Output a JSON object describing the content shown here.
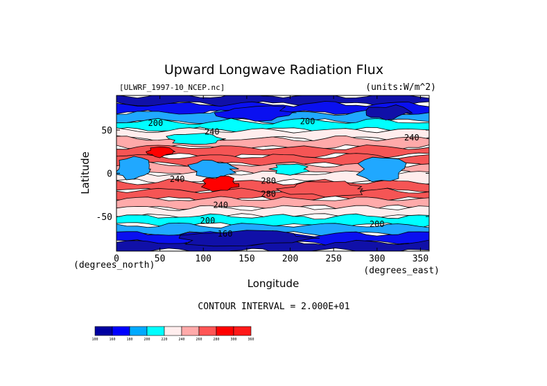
{
  "chart_data": {
    "type": "heatmap",
    "title": "Upward Longwave Radiation Flux",
    "dataset": "[ULWRF_1997-10_NCEP.nc]",
    "units_label": "(units:W/m^2)",
    "xlabel": "Longitude",
    "ylabel": "Latitude",
    "x_units": "(degrees_east)",
    "y_units": "(degrees_north)",
    "xlim": [
      0,
      360
    ],
    "ylim": [
      -90,
      90
    ],
    "x_ticks": [
      0,
      50,
      100,
      150,
      200,
      250,
      300,
      350
    ],
    "y_ticks": [
      -50,
      0,
      50
    ],
    "contour_interval_text": "CONTOUR INTERVAL = 2.000E+01",
    "colorbar": {
      "levels": [
        100,
        160,
        180,
        200,
        220,
        240,
        260,
        280,
        300,
        360
      ],
      "colors": [
        "#0000a0",
        "#0000ff",
        "#00aaff",
        "#00ffff",
        "#ffeded",
        "#ffaaaa",
        "#ff5555",
        "#ff0000",
        "#ff1a1a"
      ]
    },
    "band_colors": [
      "#1010a8",
      "#0a10f0",
      "#20a8ff",
      "#00ffff",
      "#ffeded",
      "#ffaaaa",
      "#f55555",
      "#ff0000"
    ],
    "zonal_profile": [
      {
        "lat": 90,
        "band": 0
      },
      {
        "lat": 80,
        "band": 1
      },
      {
        "lat": 70,
        "band": 2
      },
      {
        "lat": 60,
        "band": 3
      },
      {
        "lat": 50,
        "band": 4
      },
      {
        "lat": 40,
        "band": 5
      },
      {
        "lat": 30,
        "band": 6
      },
      {
        "lat": 20,
        "band": 6
      },
      {
        "lat": 10,
        "band": 5
      },
      {
        "lat": 0,
        "band": 4
      },
      {
        "lat": -10,
        "band": 6
      },
      {
        "lat": -20,
        "band": 6
      },
      {
        "lat": -30,
        "band": 5
      },
      {
        "lat": -40,
        "band": 4
      },
      {
        "lat": -50,
        "band": 3
      },
      {
        "lat": -60,
        "band": 2
      },
      {
        "lat": -70,
        "band": 1
      },
      {
        "lat": -80,
        "band": 0
      },
      {
        "lat": -90,
        "band": 0
      }
    ],
    "features": [
      {
        "lon": 110,
        "lat": 5,
        "band": 2,
        "w": 25,
        "h": 10
      },
      {
        "lon": 20,
        "lat": 5,
        "band": 2,
        "w": 20,
        "h": 12
      },
      {
        "lon": 305,
        "lat": 5,
        "band": 2,
        "w": 25,
        "h": 14
      },
      {
        "lon": 120,
        "lat": -12,
        "band": 7,
        "w": 20,
        "h": 8
      },
      {
        "lon": 50,
        "lat": 25,
        "band": 7,
        "w": 15,
        "h": 6
      },
      {
        "lon": 200,
        "lat": 5,
        "band": 3,
        "w": 20,
        "h": 6
      },
      {
        "lon": 90,
        "lat": 40,
        "band": 3,
        "w": 30,
        "h": 6
      },
      {
        "lon": 160,
        "lat": 70,
        "band": 1,
        "w": 40,
        "h": 8
      },
      {
        "lon": 310,
        "lat": 70,
        "band": 0,
        "w": 25,
        "h": 8
      },
      {
        "lon": 150,
        "lat": -75,
        "band": 0,
        "w": 80,
        "h": 8
      },
      {
        "lon": 240,
        "lat": -18,
        "band": 6,
        "w": 50,
        "h": 8
      }
    ],
    "contour_labels": [
      {
        "text": "200",
        "lon": 45,
        "lat": 55
      },
      {
        "text": "240",
        "lon": 110,
        "lat": 45
      },
      {
        "text": "200",
        "lon": 220,
        "lat": 57
      },
      {
        "text": "240",
        "lon": 340,
        "lat": 38
      },
      {
        "text": "240",
        "lon": 70,
        "lat": -10
      },
      {
        "text": "280",
        "lon": 175,
        "lat": -12
      },
      {
        "text": "280",
        "lon": 175,
        "lat": -27
      },
      {
        "text": "240",
        "lon": 120,
        "lat": -40
      },
      {
        "text": "200",
        "lon": 105,
        "lat": -58
      },
      {
        "text": "200",
        "lon": 300,
        "lat": -62
      },
      {
        "text": "160",
        "lon": 125,
        "lat": -73
      }
    ]
  }
}
